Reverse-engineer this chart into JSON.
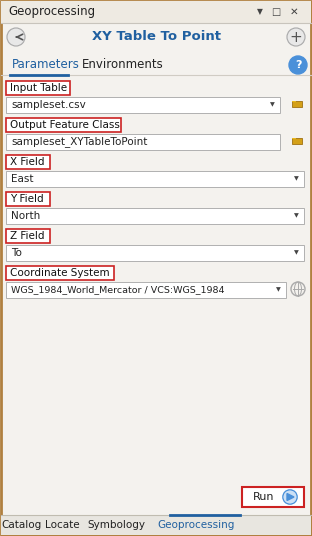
{
  "title": "Geoprocessing",
  "subtitle": "XY Table To Point",
  "tab1": "Parameters",
  "tab2": "Environments",
  "fields": [
    {
      "label": "Input Table",
      "value": "sampleset.csv",
      "type": "dropdown_folder"
    },
    {
      "label": "Output Feature Class",
      "value": "sampleset_XYTableToPoint",
      "type": "text_folder"
    },
    {
      "label": "X Field",
      "value": "East",
      "type": "dropdown"
    },
    {
      "label": "Y Field",
      "value": "North",
      "type": "dropdown"
    },
    {
      "label": "Z Field",
      "value": "To",
      "type": "dropdown"
    },
    {
      "label": "Coordinate System",
      "value": "WGS_1984_World_Mercator / VCS:WGS_1984",
      "type": "dropdown_globe"
    }
  ],
  "bottom_tabs": [
    "Catalog",
    "Locate",
    "Symbology",
    "Geoprocessing"
  ],
  "active_bottom_tab": "Geoprocessing",
  "bg_color": "#f2efe8",
  "panel_bg": "#f4f2ee",
  "header_bg": "#eeeae2",
  "border_color": "#b08040",
  "red_box_color": "#cc2222",
  "text_color": "#222222",
  "label_text_color": "#111111",
  "input_bg": "#ffffff",
  "input_border": "#b0b0b0",
  "tab_active_color": "#2060a0",
  "tab_underline_color": "#2060a0",
  "button_border_color": "#cc2222",
  "folder_icon_color": "#d4a017",
  "folder_icon_border": "#a07010",
  "run_button_text": "Run",
  "help_circle_color": "#4a90d9",
  "nav_circle_color": "#e8e8e8",
  "nav_circle_border": "#aaaaaa",
  "window_controls_color": "#555555",
  "subtitle_color": "#2060a0",
  "bottom_tab_bg": "#e8e6e0",
  "bottom_tab_border": "#c0bcb0",
  "separator_color": "#d0ccc4",
  "play_icon_color": "#4a90d9"
}
